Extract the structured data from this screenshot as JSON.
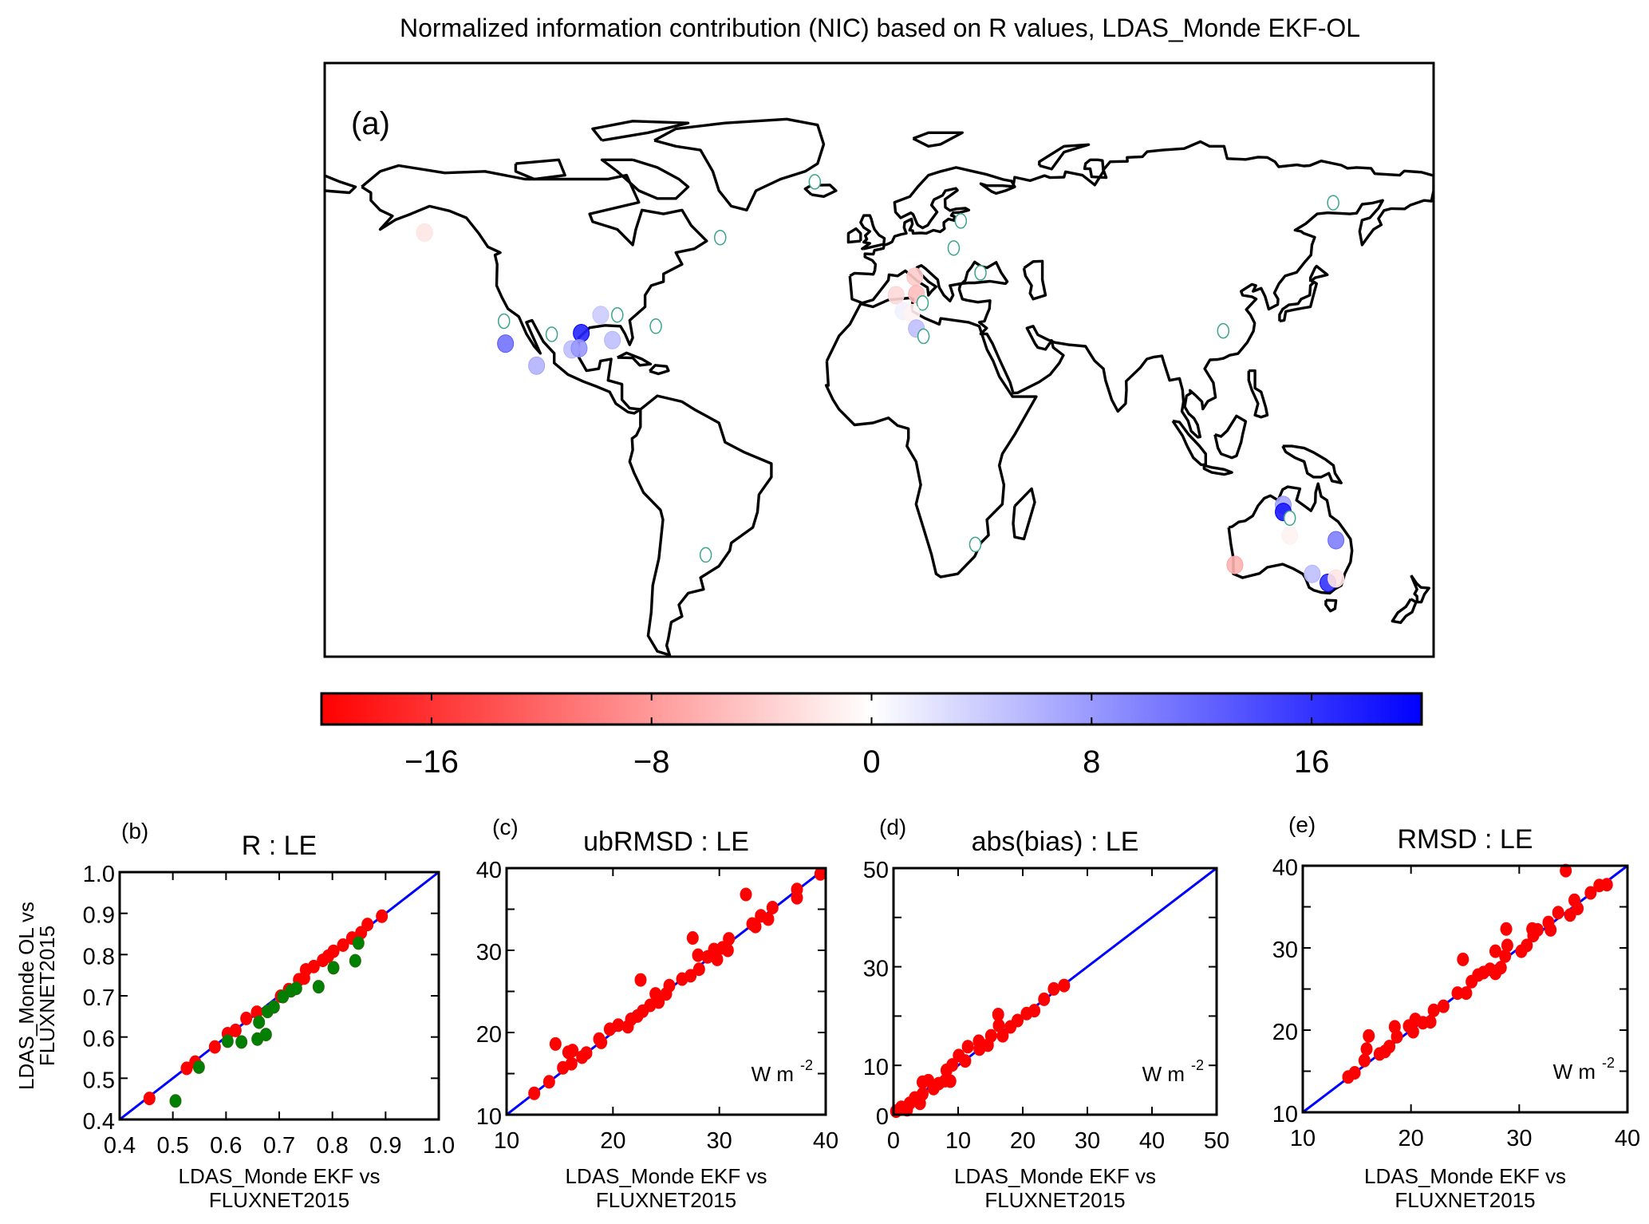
{
  "figure": {
    "title": "Normalized information contribution (NIC) based on R values, LDAS_Monde EKF-OL"
  },
  "chart_data": [
    {
      "type": "scatter",
      "panel": "(a)",
      "title": "Normalized information contribution (NIC) based on R values, LDAS_Monde EKF-OL",
      "colorbar": {
        "range": [
          -20,
          20
        ],
        "ticks": [
          -16,
          -8,
          0,
          8,
          16
        ],
        "tick_labels": [
          "−16",
          "−8",
          "0",
          "8",
          "16"
        ],
        "colors": {
          "low": "#ff0000",
          "mid": "#ffffff",
          "high": "#0000ff"
        }
      },
      "stations": [
        {
          "lon": -147.6,
          "lat": 54.2,
          "value": -2
        },
        {
          "lon": -20.9,
          "lat": 67.3,
          "value": 0,
          "hollow": true
        },
        {
          "lon": -51.6,
          "lat": 52.9,
          "value": 0,
          "hollow": true
        },
        {
          "lon": -121.8,
          "lat": 31.3,
          "value": 0,
          "hollow": true
        },
        {
          "lon": -121.3,
          "lat": 25.5,
          "value": 11
        },
        {
          "lon": -106.3,
          "lat": 27.9,
          "value": 0,
          "hollow": true
        },
        {
          "lon": -96.7,
          "lat": 28.2,
          "value": 17
        },
        {
          "lon": -90.4,
          "lat": 32.9,
          "value": 4
        },
        {
          "lon": -85.0,
          "lat": 32.9,
          "value": 0,
          "hollow": true
        },
        {
          "lon": -86.6,
          "lat": 26.4,
          "value": 5
        },
        {
          "lon": -99.8,
          "lat": 24.0,
          "value": 5
        },
        {
          "lon": -97.4,
          "lat": 24.3,
          "value": 8
        },
        {
          "lon": -111.2,
          "lat": 19.8,
          "value": 6
        },
        {
          "lon": -72.5,
          "lat": 30.0,
          "value": 0,
          "hollow": true
        },
        {
          "lon": -56.3,
          "lat": -29.1,
          "value": 0,
          "hollow": true
        },
        {
          "lon": 26.5,
          "lat": 57.2,
          "value": 0,
          "hollow": true
        },
        {
          "lon": 24.2,
          "lat": 50.2,
          "value": 0,
          "hollow": true
        },
        {
          "lon": 32.9,
          "lat": 43.8,
          "value": 0,
          "hollow": true
        },
        {
          "lon": 11.6,
          "lat": 42.8,
          "value": -4
        },
        {
          "lon": 5.5,
          "lat": 38.0,
          "value": -3
        },
        {
          "lon": 12.1,
          "lat": 38.3,
          "value": -5
        },
        {
          "lon": 14.1,
          "lat": 36.0,
          "value": 0,
          "hollow": true
        },
        {
          "lon": 7.8,
          "lat": 33.9,
          "value": 1
        },
        {
          "lon": 10.6,
          "lat": 33.4,
          "value": -1
        },
        {
          "lon": 12.1,
          "lat": 29.4,
          "value": 5
        },
        {
          "lon": 14.4,
          "lat": 27.4,
          "value": 0,
          "hollow": true
        },
        {
          "lon": 111.7,
          "lat": 28.8,
          "value": 0,
          "hollow": true
        },
        {
          "lon": 147.4,
          "lat": 61.9,
          "value": 0,
          "hollow": true
        },
        {
          "lon": 31.2,
          "lat": -26.4,
          "value": 0,
          "hollow": true
        },
        {
          "lon": 131.2,
          "lat": -16.2,
          "value": 7
        },
        {
          "lon": 131.2,
          "lat": -18.0,
          "value": 18
        },
        {
          "lon": 133.3,
          "lat": -19.6,
          "value": 0,
          "hollow": true
        },
        {
          "lon": 133.3,
          "lat": -24.1,
          "value": -1
        },
        {
          "lon": 148.3,
          "lat": -25.3,
          "value": 10
        },
        {
          "lon": 115.5,
          "lat": -31.7,
          "value": -6
        },
        {
          "lon": 140.6,
          "lat": -34.0,
          "value": 5
        },
        {
          "lon": 145.7,
          "lat": -36.3,
          "value": 16
        },
        {
          "lon": 148.3,
          "lat": -35.2,
          "value": -2
        }
      ]
    },
    {
      "type": "scatter",
      "panel": "(b)",
      "title": "R : LE",
      "xlabel": [
        "LDAS_Monde EKF vs",
        "FLUXNET2015"
      ],
      "ylabel": [
        "LDAS_Monde OL vs",
        "FLUXNET2015"
      ],
      "xlim": [
        0.4,
        1.0
      ],
      "ylim": [
        0.4,
        1.0
      ],
      "xticks": [
        0.4,
        0.5,
        0.6,
        0.7,
        0.8,
        0.9,
        1.0
      ],
      "xtick_labels": [
        "0.4",
        "0.5",
        "0.6",
        "0.7",
        "0.8",
        "0.9",
        "1.0"
      ],
      "yticks": [
        0.4,
        0.5,
        0.6,
        0.7,
        0.8,
        0.9,
        1.0
      ],
      "ytick_labels": [
        "0.4",
        "0.5",
        "0.6",
        "0.7",
        "0.8",
        "0.9",
        "1.0"
      ],
      "minor_ticks": [],
      "line_color": "#0000ff",
      "series": [
        {
          "color": "#ff0000",
          "points": [
            [
              0.456,
              0.451
            ],
            [
              0.526,
              0.524
            ],
            [
              0.542,
              0.539
            ],
            [
              0.579,
              0.576
            ],
            [
              0.603,
              0.608
            ],
            [
              0.618,
              0.616
            ],
            [
              0.638,
              0.645
            ],
            [
              0.658,
              0.66
            ],
            [
              0.703,
              0.699
            ],
            [
              0.718,
              0.715
            ],
            [
              0.737,
              0.739
            ],
            [
              0.747,
              0.743
            ],
            [
              0.75,
              0.763
            ],
            [
              0.765,
              0.771
            ],
            [
              0.782,
              0.786
            ],
            [
              0.792,
              0.796
            ],
            [
              0.802,
              0.808
            ],
            [
              0.82,
              0.823
            ],
            [
              0.837,
              0.84
            ],
            [
              0.854,
              0.853
            ],
            [
              0.866,
              0.873
            ],
            [
              0.893,
              0.893
            ]
          ]
        },
        {
          "color": "#008000",
          "points": [
            [
              0.505,
              0.445
            ],
            [
              0.549,
              0.527
            ],
            [
              0.603,
              0.59
            ],
            [
              0.629,
              0.588
            ],
            [
              0.659,
              0.595
            ],
            [
              0.662,
              0.636
            ],
            [
              0.675,
              0.606
            ],
            [
              0.678,
              0.662
            ],
            [
              0.69,
              0.673
            ],
            [
              0.707,
              0.698
            ],
            [
              0.722,
              0.712
            ],
            [
              0.732,
              0.718
            ],
            [
              0.774,
              0.722
            ],
            [
              0.802,
              0.768
            ],
            [
              0.843,
              0.785
            ],
            [
              0.849,
              0.828
            ]
          ]
        }
      ]
    },
    {
      "type": "scatter",
      "panel": "(c)",
      "title": "ubRMSD : LE",
      "xlabel": [
        "LDAS_Monde EKF vs",
        "FLUXNET2015"
      ],
      "unit": "W m",
      "unit_sup": "-2",
      "xlim": [
        10,
        40
      ],
      "ylim": [
        10,
        40
      ],
      "xticks": [
        10,
        20,
        30,
        40
      ],
      "xtick_labels": [
        "10",
        "20",
        "30",
        "40"
      ],
      "yticks": [
        10,
        20,
        30,
        40
      ],
      "ytick_labels": [
        "10",
        "20",
        "30",
        "40"
      ],
      "minor_ticks": [
        15,
        25,
        35
      ],
      "line_color": "#0000ff",
      "series": [
        {
          "color": "#ff0000",
          "points": [
            [
              12.6,
              12.6
            ],
            [
              14.0,
              14.0
            ],
            [
              14.6,
              18.6
            ],
            [
              15.3,
              15.7
            ],
            [
              15.8,
              17.6
            ],
            [
              16.2,
              17.8
            ],
            [
              16.1,
              16.2
            ],
            [
              17.1,
              17.0
            ],
            [
              17.5,
              17.5
            ],
            [
              18.7,
              19.2
            ],
            [
              18.9,
              18.8
            ],
            [
              19.7,
              20.4
            ],
            [
              20.5,
              20.9
            ],
            [
              21.4,
              20.7
            ],
            [
              21.7,
              21.6
            ],
            [
              22.3,
              22.0
            ],
            [
              22.6,
              26.4
            ],
            [
              22.8,
              22.6
            ],
            [
              23.5,
              23.3
            ],
            [
              24.0,
              24.7
            ],
            [
              24.3,
              23.7
            ],
            [
              25.0,
              24.7
            ],
            [
              25.3,
              25.7
            ],
            [
              26.5,
              26.5
            ],
            [
              27.3,
              26.9
            ],
            [
              27.5,
              31.5
            ],
            [
              28.0,
              29.4
            ],
            [
              28.1,
              27.7
            ],
            [
              28.9,
              29.2
            ],
            [
              29.5,
              30.1
            ],
            [
              29.8,
              28.9
            ],
            [
              30.3,
              30.3
            ],
            [
              30.8,
              30.0
            ],
            [
              30.9,
              31.4
            ],
            [
              32.5,
              36.8
            ],
            [
              33.1,
              33.2
            ],
            [
              33.4,
              32.9
            ],
            [
              33.9,
              34.2
            ],
            [
              34.6,
              33.8
            ],
            [
              35.0,
              35.2
            ],
            [
              37.3,
              37.4
            ],
            [
              37.3,
              36.4
            ],
            [
              39.5,
              39.3
            ]
          ]
        }
      ]
    },
    {
      "type": "scatter",
      "panel": "(d)",
      "title": "abs(bias) : LE",
      "xlabel": [
        "LDAS_Monde EKF vs",
        "FLUXNET2015"
      ],
      "unit": "W m",
      "unit_sup": "-2",
      "xlim": [
        0,
        50
      ],
      "ylim": [
        0,
        50
      ],
      "xticks": [
        0,
        10,
        20,
        30,
        40,
        50
      ],
      "xtick_labels": [
        "0",
        "10",
        "20",
        "30",
        "40",
        "50"
      ],
      "yticks": [
        0,
        10,
        30,
        50
      ],
      "ytick_labels": [
        "0",
        "10",
        "30",
        "50"
      ],
      "minor_ticks": [
        20,
        40
      ],
      "line_color": "#0000ff",
      "series": [
        {
          "color": "#ff0000",
          "points": [
            [
              0.4,
              0.7
            ],
            [
              1.2,
              1.5
            ],
            [
              2.1,
              1.0
            ],
            [
              2.5,
              2.3
            ],
            [
              3.3,
              3.4
            ],
            [
              4.1,
              2.3
            ],
            [
              4.5,
              4.2
            ],
            [
              4.5,
              6.6
            ],
            [
              5.4,
              6.9
            ],
            [
              6.2,
              5.3
            ],
            [
              7.0,
              6.3
            ],
            [
              8.0,
              6.9
            ],
            [
              8.2,
              9.0
            ],
            [
              8.8,
              6.8
            ],
            [
              9.1,
              10.1
            ],
            [
              10.1,
              12.0
            ],
            [
              11.1,
              10.9
            ],
            [
              11.5,
              13.8
            ],
            [
              13.2,
              14.9
            ],
            [
              13.3,
              13.3
            ],
            [
              14.6,
              14.1
            ],
            [
              15.1,
              16.0
            ],
            [
              16.2,
              20.3
            ],
            [
              16.3,
              18.1
            ],
            [
              16.9,
              16.0
            ],
            [
              18.1,
              17.8
            ],
            [
              19.2,
              19.1
            ],
            [
              20.6,
              20.5
            ],
            [
              21.8,
              21.1
            ],
            [
              23.3,
              23.4
            ],
            [
              24.8,
              25.5
            ],
            [
              26.4,
              26.2
            ]
          ]
        }
      ]
    },
    {
      "type": "scatter",
      "panel": "(e)",
      "title": "RMSD : LE",
      "xlabel": [
        "LDAS_Monde EKF vs",
        "FLUXNET2015"
      ],
      "unit": "W m",
      "unit_sup": "-2",
      "xlim": [
        10,
        40
      ],
      "ylim": [
        10,
        40
      ],
      "xticks": [
        10,
        20,
        30,
        40
      ],
      "xtick_labels": [
        "10",
        "20",
        "30",
        "40"
      ],
      "yticks": [
        10,
        20,
        30,
        40
      ],
      "ytick_labels": [
        "10",
        "20",
        "30",
        "40"
      ],
      "minor_ticks": [
        15,
        25,
        35
      ],
      "line_color": "#0000ff",
      "series": [
        {
          "color": "#ff0000",
          "points": [
            [
              14.2,
              14.3
            ],
            [
              14.8,
              14.8
            ],
            [
              15.7,
              16.3
            ],
            [
              15.9,
              17.7
            ],
            [
              16.1,
              19.3
            ],
            [
              17.1,
              17.1
            ],
            [
              17.6,
              17.4
            ],
            [
              18.0,
              18.0
            ],
            [
              18.5,
              20.4
            ],
            [
              18.7,
              19.2
            ],
            [
              19.8,
              20.5
            ],
            [
              20.2,
              19.8
            ],
            [
              20.4,
              21.3
            ],
            [
              21.1,
              20.9
            ],
            [
              21.8,
              21.0
            ],
            [
              22.1,
              22.4
            ],
            [
              23.0,
              22.9
            ],
            [
              24.3,
              24.5
            ],
            [
              24.8,
              28.6
            ],
            [
              25.1,
              24.5
            ],
            [
              25.6,
              25.9
            ],
            [
              26.2,
              26.7
            ],
            [
              26.7,
              27.0
            ],
            [
              27.3,
              27.4
            ],
            [
              27.8,
              29.6
            ],
            [
              27.8,
              26.9
            ],
            [
              28.3,
              27.6
            ],
            [
              28.7,
              29.0
            ],
            [
              28.8,
              32.3
            ],
            [
              28.9,
              30.3
            ],
            [
              30.2,
              29.6
            ],
            [
              30.7,
              30.3
            ],
            [
              31.2,
              32.3
            ],
            [
              31.3,
              31.5
            ],
            [
              31.7,
              32.2
            ],
            [
              32.7,
              33.1
            ],
            [
              32.9,
              32.2
            ],
            [
              33.6,
              34.3
            ],
            [
              34.3,
              39.4
            ],
            [
              34.7,
              34.0
            ],
            [
              35.1,
              35.8
            ],
            [
              35.4,
              34.8
            ],
            [
              36.6,
              36.7
            ],
            [
              37.4,
              37.6
            ],
            [
              38.1,
              37.7
            ]
          ]
        }
      ]
    }
  ]
}
